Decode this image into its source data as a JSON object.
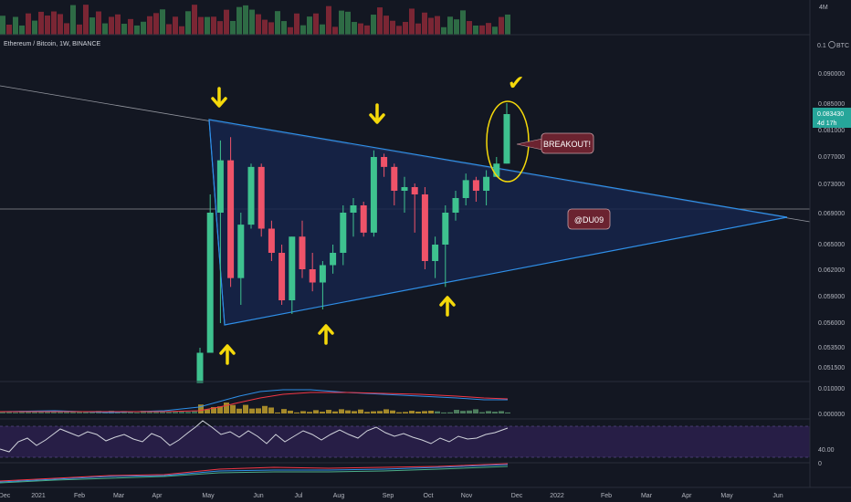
{
  "symbol_title": "Ethereum / Bitcoin, 1W, BINANCE",
  "volume_axis_label": "4M",
  "price_axis": {
    "currency_tag": "BTC",
    "ticks": [
      "0.090000",
      "0.085000",
      "0.081000",
      "0.077000",
      "0.073000",
      "0.069000",
      "0.065000",
      "0.062000",
      "0.059000",
      "0.056000",
      "0.053500",
      "0.051500"
    ],
    "current_price": "0.083430",
    "countdown": "4d 17h",
    "partial_top_label": "0.1"
  },
  "macd_axis": {
    "ticks": [
      "0.010000",
      "0.000000"
    ]
  },
  "rsi_axis": {
    "ticks": [
      "40.00"
    ]
  },
  "bottom_axis": {
    "ticks": [
      "0"
    ]
  },
  "time_axis": {
    "labels": [
      "Dec",
      "2021",
      "Feb",
      "Mar",
      "Apr",
      "May",
      "Jun",
      "Jul",
      "Aug",
      "Sep",
      "Oct",
      "Nov",
      "Dec",
      "2022",
      "Feb",
      "Mar",
      "Apr",
      "May",
      "Jun"
    ]
  },
  "annotations": {
    "breakout_label": "BREAKOUT!",
    "author_label": "@DU09",
    "checkmark": "✔"
  },
  "colors": {
    "background": "#131722",
    "up": "#26a69a",
    "candle_up": "#3ec28f",
    "candle_down": "#ef5369",
    "triangle_line": "#2f8fe8",
    "triangle_fill": "#16254a",
    "arrow": "#ffeb3b",
    "rsi_band": "#2a1f4a"
  },
  "chart_data": {
    "type": "candlestick",
    "interval": "1W",
    "ylim": [
      0.049,
      0.1
    ],
    "candles": [
      {
        "o": 0.05,
        "h": 0.0535,
        "l": 0.05,
        "c": 0.053
      },
      {
        "o": 0.053,
        "h": 0.0715,
        "l": 0.053,
        "c": 0.069
      },
      {
        "o": 0.069,
        "h": 0.0795,
        "l": 0.056,
        "c": 0.0765
      },
      {
        "o": 0.0765,
        "h": 0.08,
        "l": 0.06,
        "c": 0.061
      },
      {
        "o": 0.061,
        "h": 0.069,
        "l": 0.058,
        "c": 0.0675
      },
      {
        "o": 0.0675,
        "h": 0.076,
        "l": 0.067,
        "c": 0.0755
      },
      {
        "o": 0.0755,
        "h": 0.076,
        "l": 0.066,
        "c": 0.067
      },
      {
        "o": 0.067,
        "h": 0.068,
        "l": 0.063,
        "c": 0.064
      },
      {
        "o": 0.064,
        "h": 0.065,
        "l": 0.058,
        "c": 0.0585
      },
      {
        "o": 0.0585,
        "h": 0.066,
        "l": 0.057,
        "c": 0.066
      },
      {
        "o": 0.066,
        "h": 0.068,
        "l": 0.061,
        "c": 0.062
      },
      {
        "o": 0.062,
        "h": 0.064,
        "l": 0.0595,
        "c": 0.0605
      },
      {
        "o": 0.0605,
        "h": 0.063,
        "l": 0.0575,
        "c": 0.0625
      },
      {
        "o": 0.0625,
        "h": 0.065,
        "l": 0.0615,
        "c": 0.064
      },
      {
        "o": 0.064,
        "h": 0.07,
        "l": 0.0625,
        "c": 0.069
      },
      {
        "o": 0.069,
        "h": 0.071,
        "l": 0.066,
        "c": 0.07
      },
      {
        "o": 0.07,
        "h": 0.0705,
        "l": 0.066,
        "c": 0.0665
      },
      {
        "o": 0.0665,
        "h": 0.078,
        "l": 0.066,
        "c": 0.077
      },
      {
        "o": 0.077,
        "h": 0.0775,
        "l": 0.074,
        "c": 0.0755
      },
      {
        "o": 0.0755,
        "h": 0.076,
        "l": 0.07,
        "c": 0.072
      },
      {
        "o": 0.072,
        "h": 0.074,
        "l": 0.069,
        "c": 0.0725
      },
      {
        "o": 0.0725,
        "h": 0.073,
        "l": 0.0665,
        "c": 0.0715
      },
      {
        "o": 0.0715,
        "h": 0.0725,
        "l": 0.062,
        "c": 0.063
      },
      {
        "o": 0.063,
        "h": 0.066,
        "l": 0.061,
        "c": 0.065
      },
      {
        "o": 0.065,
        "h": 0.07,
        "l": 0.06,
        "c": 0.069
      },
      {
        "o": 0.069,
        "h": 0.072,
        "l": 0.068,
        "c": 0.071
      },
      {
        "o": 0.071,
        "h": 0.0745,
        "l": 0.07,
        "c": 0.0735
      },
      {
        "o": 0.0735,
        "h": 0.074,
        "l": 0.0705,
        "c": 0.072
      },
      {
        "o": 0.072,
        "h": 0.075,
        "l": 0.07,
        "c": 0.074
      },
      {
        "o": 0.074,
        "h": 0.077,
        "l": 0.074,
        "c": 0.076
      },
      {
        "o": 0.076,
        "h": 0.085,
        "l": 0.076,
        "c": 0.0834
      }
    ]
  }
}
